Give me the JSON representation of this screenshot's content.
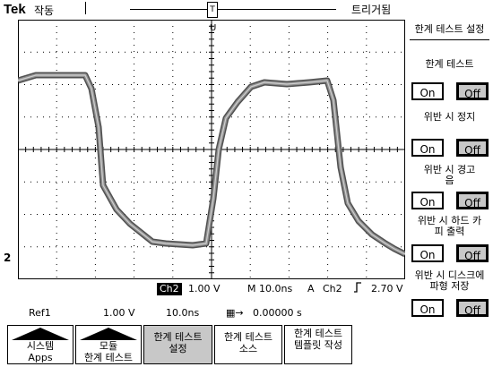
{
  "header": {
    "brand": "Tek",
    "run_state": "작동",
    "trigger_status": "트리거됨",
    "trigger_marker": "T"
  },
  "screen": {
    "ref_marker": "U",
    "ground_marker": "2",
    "readouts": {
      "channel": "Ch2",
      "volts_div": "1.00 V",
      "timebase": "M 10.0ns",
      "trig_mode": "A",
      "trig_source": "Ch2",
      "trig_slope_icon": "rising-edge-icon",
      "trig_level": "2.70 V",
      "ref_label": "Ref1",
      "ref_volts": "1.00 V",
      "ref_time": "10.0ns",
      "position": "0.00000 s"
    },
    "trace_color": "#909090",
    "grid_color": "#000000"
  },
  "menu": {
    "title": "한계 테스트 설정",
    "items": [
      {
        "label": "한계 테스트",
        "on": "On",
        "off": "Off",
        "selected": "off"
      },
      {
        "label": "위반 시 정지",
        "on": "On",
        "off": "Off",
        "selected": "off"
      },
      {
        "label": "위반 시 경고음",
        "on": "On",
        "off": "Off",
        "selected": "off"
      },
      {
        "label": "위반 시 하드 카피 출력",
        "on": "On",
        "off": "Off",
        "selected": "off"
      },
      {
        "label": "위반 시 디스크에 파형 저장",
        "on": "On",
        "off": "Off",
        "selected": "off"
      }
    ]
  },
  "softkeys": [
    {
      "line1": "시스템",
      "line2": "Apps",
      "selected": false,
      "has_arrow": true
    },
    {
      "line1": "모듈",
      "line2": "한계 테스트",
      "selected": false,
      "has_arrow": true
    },
    {
      "line1": "한계 테스트",
      "line2": "설정",
      "selected": true,
      "has_arrow": false
    },
    {
      "line1": "한계 테스트",
      "line2": "소스",
      "selected": false,
      "has_arrow": false
    },
    {
      "line1": "한계 테스트",
      "line2": "템플릿 작성",
      "selected": false,
      "has_arrow": false
    }
  ]
}
